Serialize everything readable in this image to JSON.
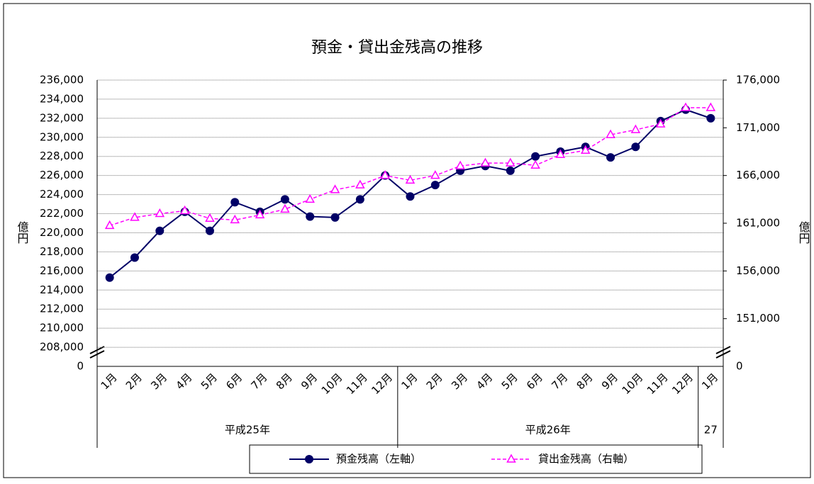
{
  "chart_data": {
    "type": "line",
    "title": "預金・貸出金残高の推移",
    "ylabel": "億円",
    "y2label": "億円",
    "categories": [
      "1月",
      "2月",
      "3月",
      "4月",
      "5月",
      "6月",
      "7月",
      "8月",
      "9月",
      "10月",
      "11月",
      "12月",
      "1月",
      "2月",
      "3月",
      "4月",
      "5月",
      "6月",
      "7月",
      "8月",
      "9月",
      "10月",
      "11月",
      "12月",
      "1月"
    ],
    "groups": [
      {
        "label": "平成25年",
        "count": 12
      },
      {
        "label": "平成26年",
        "count": 12
      },
      {
        "label": "27",
        "count": 1
      }
    ],
    "series": [
      {
        "name": "預金残高（左軸）",
        "color": "#000066",
        "marker": "circle",
        "dashed": false,
        "axis": "y",
        "values": [
          215300,
          217400,
          220200,
          222200,
          220200,
          223200,
          222200,
          223500,
          221700,
          221600,
          223500,
          226000,
          223800,
          225000,
          226500,
          227000,
          226500,
          228000,
          228500,
          229000,
          227900,
          229000,
          231700,
          232900,
          232000
        ]
      },
      {
        "name": "貸出金残高（右軸）",
        "color": "#ff00ff",
        "marker": "triangle",
        "dashed": true,
        "axis": "y2",
        "values": [
          160750,
          161600,
          162000,
          162300,
          161500,
          161340,
          161860,
          162460,
          163500,
          164500,
          165000,
          166000,
          165500,
          166000,
          167000,
          167300,
          167300,
          167070,
          168190,
          168630,
          170270,
          170790,
          171390,
          173100,
          173100
        ]
      }
    ],
    "ylim": [
      206000,
      236000
    ],
    "yticks": [
      {
        "value": 208000,
        "label": "208,000"
      },
      {
        "value": 210000,
        "label": "210,000"
      },
      {
        "value": 212000,
        "label": "212,000"
      },
      {
        "value": 214000,
        "label": "214,000"
      },
      {
        "value": 216000,
        "label": "216,000"
      },
      {
        "value": 218000,
        "label": "218,000"
      },
      {
        "value": 220000,
        "label": "220,000"
      },
      {
        "value": 222000,
        "label": "222,000"
      },
      {
        "value": 224000,
        "label": "224,000"
      },
      {
        "value": 226000,
        "label": "226,000"
      },
      {
        "value": 228000,
        "label": "228,000"
      },
      {
        "value": 230000,
        "label": "230,000"
      },
      {
        "value": 232000,
        "label": "232,000"
      },
      {
        "value": 234000,
        "label": "234,000"
      },
      {
        "value": 236000,
        "label": "236,000"
      }
    ],
    "y2lim": [
      146000,
      176000
    ],
    "y2ticks": [
      {
        "value": 151000,
        "label": "151,000"
      },
      {
        "value": 156000,
        "label": "156,000"
      },
      {
        "value": 161000,
        "label": "161,000"
      },
      {
        "value": 166000,
        "label": "166,000"
      },
      {
        "value": 171000,
        "label": "171,000"
      },
      {
        "value": 176000,
        "label": "176,000"
      }
    ],
    "axis_break_label": "0",
    "grid": true
  }
}
